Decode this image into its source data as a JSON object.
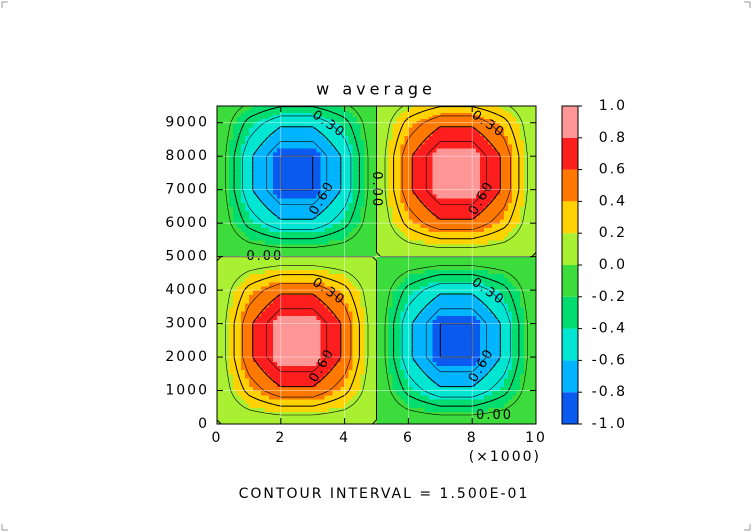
{
  "chart_data": {
    "type": "contour",
    "title": "w average",
    "x": [
      0,
      1000,
      2000,
      3000,
      4000,
      5000,
      6000,
      7000,
      8000,
      9000,
      10000
    ],
    "y": [
      0,
      1000,
      2000,
      3000,
      4000,
      5000,
      6000,
      7000,
      8000,
      9000,
      9500
    ],
    "z": [
      [
        0,
        0,
        0,
        0,
        0,
        0,
        0,
        0,
        0,
        0,
        0
      ],
      [
        0,
        0.35,
        0.56,
        0.56,
        0.35,
        0,
        -0.35,
        -0.56,
        -0.56,
        -0.35,
        0
      ],
      [
        0,
        0.56,
        0.9,
        0.9,
        0.56,
        0,
        -0.56,
        -0.9,
        -0.9,
        -0.56,
        0
      ],
      [
        0,
        0.56,
        0.9,
        0.9,
        0.56,
        0,
        -0.56,
        -0.9,
        -0.9,
        -0.56,
        0
      ],
      [
        0,
        0.35,
        0.56,
        0.56,
        0.35,
        0,
        -0.35,
        -0.56,
        -0.56,
        -0.35,
        0
      ],
      [
        0,
        0,
        0,
        0,
        0,
        0,
        0,
        0,
        0,
        0,
        0
      ],
      [
        0,
        -0.35,
        -0.56,
        -0.56,
        -0.35,
        0,
        0.35,
        0.56,
        0.56,
        0.35,
        0
      ],
      [
        0,
        -0.56,
        -0.9,
        -0.9,
        -0.56,
        0,
        0.56,
        0.9,
        0.9,
        0.56,
        0
      ],
      [
        0,
        -0.56,
        -0.9,
        -0.9,
        -0.56,
        0,
        0.56,
        0.9,
        0.9,
        0.56,
        0
      ],
      [
        0,
        -0.35,
        -0.56,
        -0.56,
        -0.35,
        0,
        0.35,
        0.56,
        0.56,
        0.35,
        0
      ],
      [
        0,
        -0.18,
        -0.29,
        -0.29,
        -0.18,
        0,
        0.18,
        0.29,
        0.29,
        0.18,
        0
      ]
    ],
    "xlim": [
      0,
      10000
    ],
    "ylim": [
      0,
      9500
    ],
    "xticks": [
      {
        "value": 0,
        "label": "0"
      },
      {
        "value": 2000,
        "label": "2"
      },
      {
        "value": 4000,
        "label": "4"
      },
      {
        "value": 6000,
        "label": "6"
      },
      {
        "value": 8000,
        "label": "8"
      },
      {
        "value": 10000,
        "label": "10"
      }
    ],
    "x_multiplier": "(×1000)",
    "yticks": [
      0,
      1000,
      2000,
      3000,
      4000,
      5000,
      6000,
      7000,
      8000,
      9000
    ],
    "colorbar": {
      "ticks": [
        {
          "value": -1,
          "label": "-1.0"
        },
        {
          "value": -0.8,
          "label": "-0.8"
        },
        {
          "value": -0.6,
          "label": "-0.6"
        },
        {
          "value": -0.4,
          "label": "-0.4"
        },
        {
          "value": -0.2,
          "label": "-0.2"
        },
        {
          "value": 0,
          "label": "0.0"
        },
        {
          "value": 0.2,
          "label": "0.2"
        },
        {
          "value": 0.4,
          "label": "0.4"
        },
        {
          "value": 0.6,
          "label": "0.6"
        },
        {
          "value": 0.8,
          "label": "0.8"
        },
        {
          "value": 1,
          "label": "1.0"
        }
      ],
      "colors": [
        "#0a5af0",
        "#00b4ff",
        "#00e6d2",
        "#00dc6e",
        "#3cdc3c",
        "#aaf032",
        "#ffd200",
        "#ff7800",
        "#ff1e1e",
        "#ff9696"
      ]
    },
    "contour_interval": 0.15,
    "contour_labels": [
      "0.30",
      "0.60",
      "0.00"
    ],
    "footer": "CONTOUR INTERVAL = 1.500E-01"
  }
}
